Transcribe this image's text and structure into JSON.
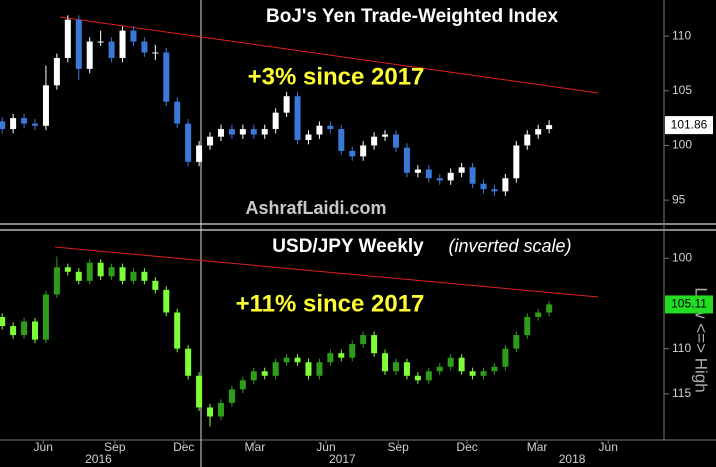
{
  "chart_data": {
    "type": "candlestick",
    "x_axis": {
      "xlim": [
        -0.2,
        60.5
      ],
      "xticks": [
        {
          "value": 3.75,
          "label": "Jun"
        },
        {
          "value": 10.3,
          "label": "Sep"
        },
        {
          "value": 16.6,
          "label": "Dec"
        },
        {
          "value": 23.1,
          "label": "Mar"
        },
        {
          "value": 29.6,
          "label": "Jun"
        },
        {
          "value": 36.2,
          "label": "Sep"
        },
        {
          "value": 42.5,
          "label": "Dec"
        },
        {
          "value": 48.9,
          "label": "Mar"
        },
        {
          "value": 55.4,
          "label": "Jun"
        }
      ],
      "year_ticks": [
        {
          "value": 8.8,
          "label": "2016"
        },
        {
          "value": 31.1,
          "label": "2017"
        },
        {
          "value": 52.1,
          "label": "2018"
        }
      ]
    },
    "panels": [
      {
        "title": "BoJ's Yen Trade-Weighted Index",
        "annotation": "+3% since 2017",
        "watermark": "AshrafLaidi.com",
        "ylim": [
          93.0,
          113.3
        ],
        "yticks": [
          95,
          100,
          105,
          110
        ],
        "inverted": false,
        "last_price": 101.86,
        "up_color": "#ffffff",
        "down_color": "#3b78d8",
        "candles": [
          [
            102.2,
            102.6,
            101.1,
            101.5
          ],
          [
            101.5,
            102.9,
            101.1,
            102.5
          ],
          [
            102.5,
            102.9,
            101.6,
            102.0
          ],
          [
            102.0,
            102.4,
            101.4,
            101.8
          ],
          [
            101.8,
            107.3,
            101.4,
            105.5
          ],
          [
            105.5,
            108.4,
            105.1,
            108.0
          ],
          [
            108.0,
            111.9,
            107.6,
            111.5
          ],
          [
            111.5,
            111.9,
            106.0,
            107.0
          ],
          [
            107.0,
            109.9,
            106.6,
            109.5
          ],
          [
            109.5,
            110.5,
            109.1,
            109.5
          ],
          [
            109.5,
            109.9,
            107.6,
            108.0
          ],
          [
            108.0,
            110.9,
            107.6,
            110.5
          ],
          [
            110.5,
            110.9,
            109.1,
            109.5
          ],
          [
            109.5,
            109.9,
            108.1,
            108.5
          ],
          [
            108.5,
            109.2,
            107.8,
            108.5
          ],
          [
            108.5,
            108.9,
            103.6,
            104.0
          ],
          [
            104.0,
            104.4,
            101.6,
            102.0
          ],
          [
            102.0,
            102.4,
            98.1,
            98.5
          ],
          [
            98.5,
            100.4,
            98.1,
            100.0
          ],
          [
            100.0,
            101.2,
            99.6,
            100.8
          ],
          [
            100.8,
            101.9,
            100.4,
            101.5
          ],
          [
            101.5,
            101.9,
            100.6,
            101.0
          ],
          [
            101.0,
            101.9,
            100.6,
            101.5
          ],
          [
            101.5,
            101.9,
            100.6,
            101.0
          ],
          [
            101.0,
            101.9,
            100.6,
            101.5
          ],
          [
            101.5,
            103.4,
            101.1,
            103.0
          ],
          [
            103.0,
            104.9,
            102.6,
            104.5
          ],
          [
            104.5,
            104.9,
            100.1,
            100.5
          ],
          [
            100.5,
            101.4,
            100.1,
            101.0
          ],
          [
            101.0,
            102.2,
            100.6,
            101.8
          ],
          [
            101.8,
            102.2,
            101.1,
            101.5
          ],
          [
            101.5,
            101.9,
            99.1,
            99.5
          ],
          [
            99.5,
            99.9,
            98.6,
            99.0
          ],
          [
            99.0,
            100.4,
            98.6,
            100.0
          ],
          [
            100.0,
            101.2,
            99.6,
            100.8
          ],
          [
            100.8,
            101.4,
            100.4,
            101.0
          ],
          [
            101.0,
            101.4,
            99.4,
            99.8
          ],
          [
            99.8,
            100.2,
            97.1,
            97.5
          ],
          [
            97.5,
            98.2,
            97.1,
            97.8
          ],
          [
            97.8,
            98.2,
            96.6,
            97.0
          ],
          [
            97.0,
            97.4,
            96.4,
            96.8
          ],
          [
            96.8,
            97.9,
            96.4,
            97.5
          ],
          [
            97.5,
            98.4,
            97.1,
            98.0
          ],
          [
            98.0,
            98.4,
            96.1,
            96.5
          ],
          [
            96.5,
            96.9,
            95.6,
            96.0
          ],
          [
            96.0,
            96.4,
            95.4,
            95.8
          ],
          [
            95.8,
            97.4,
            95.4,
            97.0
          ],
          [
            97.0,
            100.4,
            96.6,
            100.0
          ],
          [
            100.0,
            101.4,
            99.6,
            101.0
          ],
          [
            101.0,
            101.9,
            100.6,
            101.5
          ],
          [
            101.5,
            102.3,
            101.1,
            101.86
          ]
        ]
      },
      {
        "title": "USD/JPY Weekly",
        "subtitle": "(inverted scale)",
        "annotation": "+11% since 2017",
        "axis_label": "Low <=> High",
        "ylim": [
          97.1,
          120.1
        ],
        "yticks": [
          100,
          110,
          115
        ],
        "inverted": true,
        "last_price": 105.11,
        "up_color": "#7dff3a",
        "down_color": "#2e9e1a",
        "candles": [
          [
            106.5,
            107.9,
            106.1,
            107.5
          ],
          [
            107.5,
            108.9,
            107.1,
            108.5
          ],
          [
            108.5,
            108.9,
            106.6,
            107.0
          ],
          [
            107.0,
            109.4,
            106.6,
            109.0
          ],
          [
            109.0,
            109.4,
            103.6,
            104.0
          ],
          [
            104.0,
            104.4,
            99.8,
            101.0
          ],
          [
            101.0,
            101.9,
            100.6,
            101.5
          ],
          [
            101.5,
            102.9,
            101.1,
            102.5
          ],
          [
            102.5,
            102.9,
            100.1,
            100.5
          ],
          [
            100.5,
            102.4,
            100.1,
            102.0
          ],
          [
            102.0,
            102.4,
            100.6,
            101.0
          ],
          [
            101.0,
            102.9,
            100.6,
            102.5
          ],
          [
            102.5,
            102.9,
            101.1,
            101.5
          ],
          [
            101.5,
            102.9,
            101.1,
            102.5
          ],
          [
            102.5,
            103.9,
            102.1,
            103.5
          ],
          [
            103.5,
            106.4,
            103.1,
            106.0
          ],
          [
            106.0,
            110.4,
            105.6,
            110.0
          ],
          [
            110.0,
            113.4,
            109.6,
            113.0
          ],
          [
            113.0,
            116.9,
            112.6,
            116.5
          ],
          [
            116.5,
            118.6,
            116.1,
            117.5
          ],
          [
            117.5,
            117.9,
            115.6,
            116.0
          ],
          [
            116.0,
            116.4,
            114.1,
            114.5
          ],
          [
            114.5,
            114.9,
            113.1,
            113.5
          ],
          [
            113.5,
            113.9,
            112.1,
            112.5
          ],
          [
            112.5,
            113.4,
            112.1,
            113.0
          ],
          [
            113.0,
            113.4,
            111.1,
            111.5
          ],
          [
            111.5,
            111.9,
            110.6,
            111.0
          ],
          [
            111.0,
            111.9,
            110.6,
            111.5
          ],
          [
            111.5,
            113.4,
            111.1,
            113.0
          ],
          [
            113.0,
            113.4,
            111.1,
            111.5
          ],
          [
            111.5,
            111.9,
            110.1,
            110.5
          ],
          [
            110.5,
            111.4,
            110.1,
            111.0
          ],
          [
            111.0,
            111.4,
            109.1,
            109.5
          ],
          [
            109.5,
            109.9,
            108.1,
            108.5
          ],
          [
            108.5,
            110.9,
            108.1,
            110.5
          ],
          [
            110.5,
            112.9,
            110.1,
            112.5
          ],
          [
            112.5,
            112.9,
            111.1,
            111.5
          ],
          [
            111.5,
            113.4,
            111.1,
            113.0
          ],
          [
            113.0,
            113.9,
            112.6,
            113.5
          ],
          [
            113.5,
            113.9,
            112.1,
            112.5
          ],
          [
            112.5,
            112.9,
            111.6,
            112.0
          ],
          [
            112.0,
            112.4,
            110.6,
            111.0
          ],
          [
            111.0,
            112.9,
            110.6,
            112.5
          ],
          [
            112.5,
            113.4,
            112.1,
            113.0
          ],
          [
            113.0,
            113.4,
            112.1,
            112.5
          ],
          [
            112.5,
            112.9,
            111.6,
            112.0
          ],
          [
            112.0,
            112.4,
            109.6,
            110.0
          ],
          [
            110.0,
            110.4,
            108.1,
            108.5
          ],
          [
            108.5,
            108.9,
            106.1,
            106.5
          ],
          [
            106.5,
            106.9,
            105.6,
            106.0
          ],
          [
            106.0,
            106.4,
            104.7,
            105.11
          ]
        ]
      }
    ]
  }
}
